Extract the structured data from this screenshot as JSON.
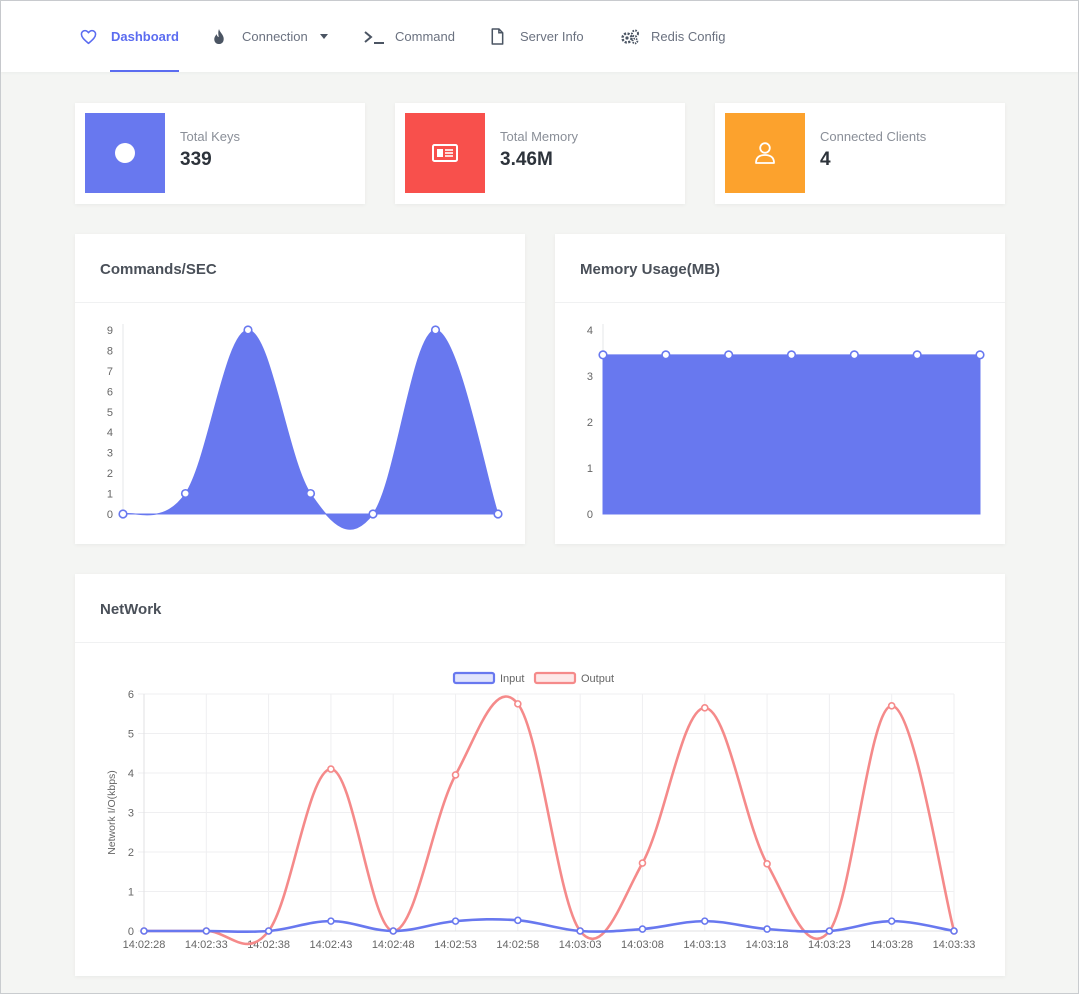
{
  "nav": {
    "items": [
      {
        "label": "Dashboard",
        "icon": "heart-icon",
        "active": true
      },
      {
        "label": "Connection",
        "icon": "flame-icon"
      },
      {
        "label": "Command",
        "icon": "terminal-icon"
      },
      {
        "label": "Server Info",
        "icon": "file-icon"
      },
      {
        "label": "Redis Config",
        "icon": "gears-icon"
      }
    ]
  },
  "stats": [
    {
      "label": "Total Keys",
      "value": "339",
      "color": "#6878ef",
      "icon": "circle-icon"
    },
    {
      "label": "Total Memory",
      "value": "3.46M",
      "color": "#f8504c",
      "icon": "memory-icon"
    },
    {
      "label": "Connected Clients",
      "value": "4",
      "color": "#fca22d",
      "icon": "user-icon"
    }
  ],
  "colors": {
    "accent": "#5b6cf0",
    "fill": "#6878ef",
    "input": "#6878ef",
    "output": "#f58a8a"
  },
  "chart_data": [
    {
      "type": "area",
      "title": "Commands/SEC",
      "x": [
        0,
        1,
        2,
        3,
        4,
        5,
        6
      ],
      "values": [
        0,
        1,
        9,
        1,
        0,
        9,
        0
      ],
      "ylim": [
        0,
        9
      ],
      "yticks": [
        "0",
        "1",
        "2",
        "3",
        "4",
        "5",
        "6",
        "7",
        "8",
        "9"
      ],
      "grid": false
    },
    {
      "type": "area",
      "title": "Memory Usage(MB)",
      "x": [
        0,
        1,
        2,
        3,
        4,
        5,
        6
      ],
      "values": [
        3.46,
        3.46,
        3.46,
        3.46,
        3.46,
        3.46,
        3.46
      ],
      "ylim": [
        0,
        4
      ],
      "yticks": [
        "0",
        "1",
        "2",
        "3",
        "4"
      ],
      "grid": false
    },
    {
      "type": "line",
      "title": "NetWork",
      "ylabel": "Network I/O(kbps)",
      "ylim": [
        0,
        6
      ],
      "yticks": [
        "0",
        "1",
        "2",
        "3",
        "4",
        "5",
        "6"
      ],
      "legend": "top",
      "grid": true,
      "categories": [
        "14:02:28",
        "14:02:33",
        "14:02:38",
        "14:02:43",
        "14:02:48",
        "14:02:53",
        "14:02:58",
        "14:03:03",
        "14:03:08",
        "14:03:13",
        "14:03:18",
        "14:03:23",
        "14:03:28",
        "14:03:33"
      ],
      "series": [
        {
          "name": "Input",
          "values": [
            0,
            0,
            0,
            0.25,
            0,
            0.25,
            0.27,
            0,
            0.05,
            0.25,
            0.05,
            0,
            0.25,
            0
          ]
        },
        {
          "name": "Output",
          "values": [
            0,
            0,
            0,
            4.1,
            0,
            3.95,
            5.75,
            0,
            1.72,
            5.65,
            1.7,
            0,
            5.7,
            0
          ]
        }
      ]
    }
  ]
}
